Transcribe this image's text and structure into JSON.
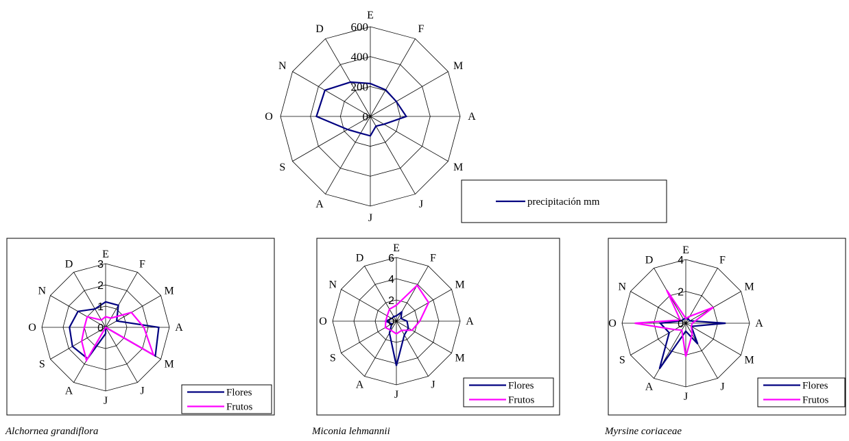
{
  "chart_data": [
    {
      "type": "radar",
      "months": [
        "E",
        "F",
        "M",
        "A",
        "M",
        "J",
        "J",
        "A",
        "S",
        "O",
        "N",
        "D"
      ],
      "rlim": [
        0,
        600
      ],
      "ticks": [
        "0",
        "200",
        "400",
        "600"
      ],
      "series": [
        {
          "name": "precipitación mm",
          "color": "#000080",
          "values": [
            220,
            205,
            200,
            240,
            105,
            75,
            130,
            130,
            175,
            360,
            350,
            265
          ]
        }
      ],
      "legend": "bottom-right"
    },
    {
      "type": "radar",
      "months": [
        "E",
        "F",
        "M",
        "A",
        "M",
        "J",
        "J",
        "A",
        "S",
        "O",
        "N",
        "D"
      ],
      "rlim": [
        0,
        3
      ],
      "ticks": [
        "0",
        "1",
        "2",
        "3"
      ],
      "series": [
        {
          "name": "Flores",
          "color": "#000080",
          "values": [
            1.2,
            1.2,
            0.6,
            2.5,
            2.7,
            0,
            0.3,
            1.7,
            1.8,
            1.7,
            1.5,
            1.0
          ]
        },
        {
          "name": "Frutos",
          "color": "#ff00ff",
          "values": [
            0.5,
            0.5,
            1.4,
            1.8,
            2.6,
            0,
            0,
            1.8,
            1.3,
            1.0,
            1.0,
            0.4
          ]
        }
      ],
      "legend": "bottom-right",
      "caption": "Alchornea grandiflora"
    },
    {
      "type": "radar",
      "months": [
        "E",
        "F",
        "M",
        "A",
        "M",
        "J",
        "J",
        "A",
        "S",
        "O",
        "N",
        "D"
      ],
      "rlim": [
        0,
        6
      ],
      "ticks": [
        "0",
        "2",
        "4",
        "6"
      ],
      "series": [
        {
          "name": "Flores",
          "color": "#000080",
          "values": [
            0.5,
            1.0,
            0.5,
            1.0,
            1.3,
            1.5,
            4.2,
            1.3,
            0.5,
            1.0,
            0.5,
            0.5
          ]
        },
        {
          "name": "Frutos",
          "color": "#ff00ff",
          "values": [
            1.5,
            3.9,
            3.5,
            2.2,
            1.7,
            1.0,
            1.2,
            1.0,
            1.2,
            1.0,
            1.0,
            1.3
          ]
        }
      ],
      "legend": "bottom-right",
      "caption": "Miconia lehmannii"
    },
    {
      "type": "radar",
      "months": [
        "E",
        "F",
        "M",
        "A",
        "M",
        "J",
        "J",
        "A",
        "S",
        "O",
        "N",
        "D"
      ],
      "rlim": [
        0,
        4
      ],
      "ticks": [
        "0",
        "2",
        "4"
      ],
      "series": [
        {
          "name": "Flores",
          "color": "#000080",
          "values": [
            0.3,
            0.3,
            0.3,
            2.5,
            0.4,
            1.5,
            0.5,
            3.3,
            1.2,
            1.6,
            0.3,
            0.3
          ]
        },
        {
          "name": "Frutos",
          "color": "#ff00ff",
          "values": [
            0.3,
            0.5,
            2.0,
            0.4,
            0.4,
            0.8,
            2.1,
            0.5,
            0.8,
            3.2,
            0.4,
            2.4
          ]
        }
      ],
      "legend": "bottom-right",
      "caption": "Myrsine coriaceae"
    }
  ]
}
